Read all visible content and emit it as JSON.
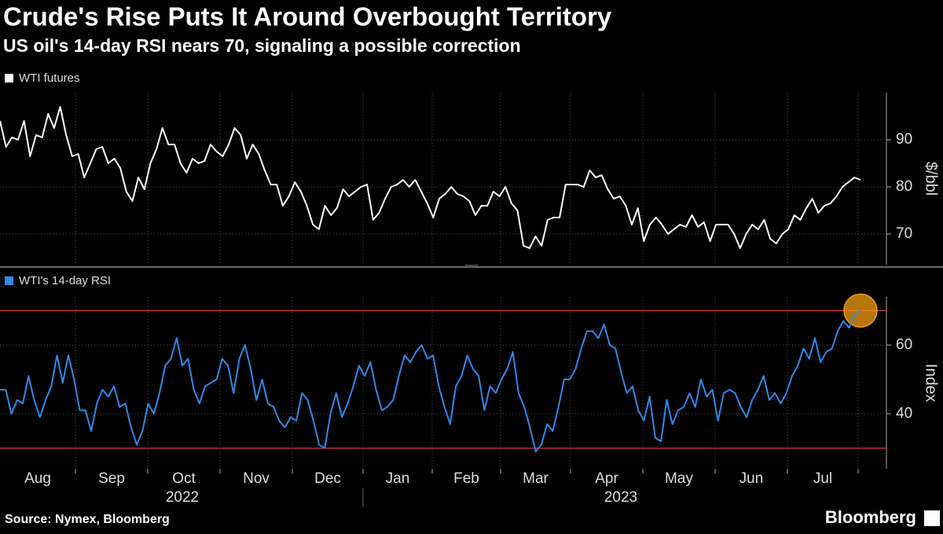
{
  "header": {
    "title": "Crude's Rise Puts It Around Overbought Territory",
    "subtitle": "US oil's 14-day RSI nears 70, signaling a possible correction"
  },
  "chart_data": [
    {
      "type": "line",
      "ylabel": "$/bbl",
      "ylim": [
        63.5,
        100
      ],
      "yticks": [
        70,
        80,
        90
      ],
      "grid": true,
      "series": [
        {
          "name": "WTI futures",
          "color": "#ffffff",
          "values": [
            94,
            88.5,
            90.5,
            90,
            94,
            86.5,
            91,
            90.5,
            95.5,
            92.5,
            97,
            91,
            86.5,
            87,
            82,
            85,
            88,
            88.5,
            85,
            86,
            84,
            79,
            77,
            82,
            79.5,
            85,
            88,
            92.5,
            89,
            89,
            85,
            83,
            86,
            85,
            85.5,
            89,
            87.5,
            86.5,
            89,
            92.5,
            91,
            86,
            89,
            87,
            83.5,
            80.5,
            80.5,
            76,
            78,
            81,
            79,
            76,
            72,
            71,
            76,
            74,
            75.5,
            79.5,
            78,
            79,
            80,
            80.5,
            73,
            74.5,
            77.5,
            80,
            80.5,
            81.5,
            80,
            81.5,
            79,
            76.5,
            73.5,
            77.5,
            78.5,
            80,
            78.5,
            78,
            77,
            74,
            76,
            76,
            79,
            78,
            80,
            76.5,
            75,
            67.5,
            67,
            69.5,
            67.5,
            73,
            73.5,
            73.5,
            80.5,
            80.5,
            80.5,
            80,
            83.5,
            82,
            82.5,
            79.5,
            77.5,
            78,
            76,
            72,
            75.5,
            68.5,
            72,
            73.5,
            72,
            70,
            71,
            72,
            71.5,
            74,
            71.5,
            72.5,
            68.5,
            72,
            72,
            72,
            70,
            67,
            70,
            72,
            71,
            73,
            69,
            68,
            70,
            71,
            74,
            73,
            75.5,
            77.5,
            74.5,
            76,
            76.5,
            78,
            80,
            81,
            82,
            81.5
          ]
        }
      ]
    },
    {
      "type": "line",
      "ylabel": "Index",
      "ylim": [
        24,
        74
      ],
      "yticks": [
        40,
        60
      ],
      "grid": true,
      "reference_lines": [
        70,
        30
      ],
      "reference_color": "#e0304a",
      "highlight_color": "#f39c12",
      "series": [
        {
          "name": "WTI's 14-day RSI",
          "color": "#2f8ae8",
          "values": [
            47,
            47,
            40,
            44,
            43,
            51,
            44,
            39,
            44,
            48,
            57,
            49,
            57,
            50,
            41,
            41,
            35,
            43,
            47,
            45,
            48,
            42,
            43,
            36,
            31,
            35,
            43,
            40,
            46,
            54,
            56,
            62,
            54,
            56,
            47,
            43,
            48,
            49,
            50,
            56,
            54,
            46,
            56,
            60,
            53,
            44,
            50,
            43,
            42,
            38,
            36,
            39,
            38,
            46,
            44,
            38,
            31,
            30,
            40,
            46,
            39,
            43,
            48,
            54,
            51,
            55,
            47,
            41,
            42,
            44,
            51,
            57,
            55,
            58,
            60,
            56,
            57,
            48,
            42,
            37,
            48,
            51,
            57,
            53,
            51,
            41,
            48,
            46,
            50,
            53,
            58,
            46,
            42,
            36,
            29,
            31,
            37,
            35,
            42,
            50,
            50,
            53,
            59,
            64,
            64,
            62,
            66,
            60,
            59,
            52,
            46,
            48,
            41,
            38,
            45,
            33,
            32,
            44,
            37,
            41,
            42,
            46,
            42,
            50,
            45,
            47,
            38,
            46,
            47,
            46,
            42,
            39,
            44,
            47,
            51,
            44,
            46,
            43,
            46,
            51,
            54,
            59,
            56,
            62,
            55,
            58,
            59,
            64,
            67,
            65,
            69,
            70
          ]
        }
      ]
    }
  ],
  "x_axis": {
    "months": [
      "Aug",
      "Sep",
      "Oct",
      "Nov",
      "Dec",
      "Jan",
      "Feb",
      "Mar",
      "Apr",
      "May",
      "Jun",
      "Jul"
    ],
    "years": [
      "2022",
      "2023"
    ]
  },
  "footer": {
    "source": "Source: Nymex, Bloomberg",
    "brand": "Bloomberg"
  }
}
